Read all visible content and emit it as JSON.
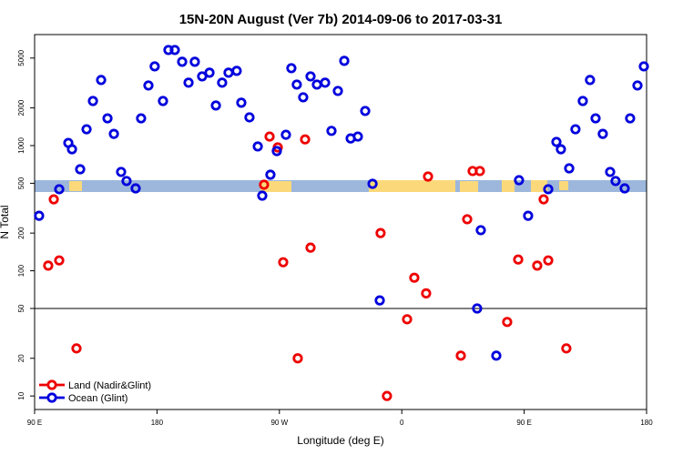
{
  "chart_data": {
    "type": "scatter",
    "title": "15N-20N August (Ver 7b)   2014-09-06 to 2017-03-31",
    "x_label": "Longitude (deg E)",
    "y_label": "N Total",
    "log_y": true,
    "legend": "lower left",
    "reference_line": 50,
    "xlim": [
      90,
      540
    ],
    "xticks": [
      {
        "value": 90,
        "label": "90 E"
      },
      180,
      {
        "value": 270,
        "label": "90 W"
      },
      {
        "value": 360,
        "label": "0"
      },
      {
        "value": 450,
        "label": "90 E"
      },
      {
        "value": 540,
        "label": "180"
      }
    ],
    "ylim": [
      7.8,
      7700
    ],
    "yticks": [
      10,
      20,
      50,
      100,
      200,
      500,
      1000,
      2000,
      5000
    ],
    "series": [
      {
        "name": "Land (Nadir&Glint)",
        "color": "#ee0000",
        "x": [
          100.0,
          104.1,
          108.1,
          120.8,
          258.7,
          262.8,
          268.8,
          272.8,
          283.5,
          288.9,
          292.9,
          344.4,
          349.1,
          363.9,
          369.2,
          377.9,
          379.3,
          403.4,
          408.1,
          412.1,
          417.4,
          437.5,
          445.6,
          459.6,
          464.3,
          467.7,
          481.0
        ],
        "values": [
          110,
          372,
          121,
          24,
          487,
          1180,
          967,
          117,
          20,
          1120,
          153,
          200,
          10,
          41,
          88,
          66,
          566,
          21,
          258,
          626,
          626,
          39,
          123,
          110,
          372,
          121,
          24
        ]
      },
      {
        "name": "Ocean (Glint)",
        "color": "#0000dd",
        "x": [
          93.3,
          108.1,
          114.8,
          117.5,
          123.5,
          128.2,
          132.9,
          138.9,
          143.6,
          148.3,
          153.6,
          157.6,
          164.3,
          168.3,
          173.7,
          178.3,
          184.4,
          188.4,
          193.1,
          198.5,
          203.2,
          207.8,
          213.2,
          218.6,
          223.3,
          227.9,
          232.6,
          238.6,
          242.0,
          248.0,
          254.1,
          257.4,
          263.4,
          268.1,
          274.8,
          278.8,
          282.8,
          287.5,
          292.9,
          297.6,
          303.6,
          308.3,
          313.0,
          317.7,
          322.4,
          327.7,
          333.1,
          338.5,
          343.8,
          415.4,
          418.1,
          429.5,
          446.2,
          452.9,
          467.7,
          473.7,
          477.0,
          483.1,
          487.7,
          493.1,
          498.4,
          502.5,
          507.8,
          513.2,
          517.2,
          523.9,
          527.9,
          533.3,
          538.0
        ],
        "values": [
          275,
          448,
          1050,
          935,
          647,
          1350,
          2270,
          3340,
          1650,
          1240,
          616,
          521,
          455,
          1650,
          3020,
          4290,
          2270,
          5800,
          5800,
          4670,
          3180,
          4670,
          3570,
          3820,
          2090,
          3180,
          3820,
          3950,
          2200,
          1680,
          984,
          398,
          585,
          904,
          1220,
          4150,
          3070,
          2430,
          3570,
          3070,
          3180,
          1310,
          2730,
          4750,
          1140,
          1180,
          1890,
          495,
          58,
          50,
          211,
          21,
          529,
          275,
          448,
          1070,
          935,
          658,
          1350,
          2270,
          3340,
          1650,
          1240,
          616,
          521,
          455,
          1650,
          3020,
          4290
        ]
      }
    ]
  }
}
